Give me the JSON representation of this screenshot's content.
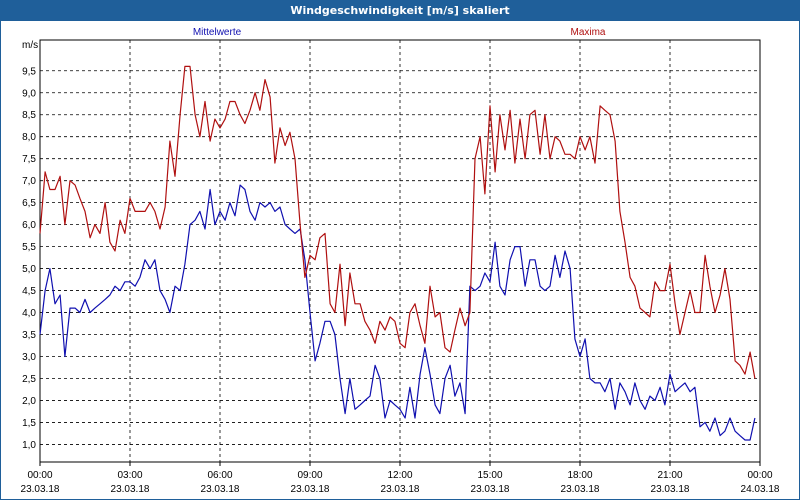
{
  "window": {
    "title": "Windgeschwindigkeit [m/s] skaliert"
  },
  "chart_data": {
    "type": "line",
    "yunit": "m/s",
    "ylim": [
      0.6,
      10.2
    ],
    "yticks": [
      1.0,
      1.5,
      2.0,
      2.5,
      3.0,
      3.5,
      4.0,
      4.5,
      5.0,
      5.5,
      6.0,
      6.5,
      7.0,
      7.5,
      8.0,
      8.5,
      9.0,
      9.5
    ],
    "ytick_labels": [
      "1,0",
      "1,5",
      "2,0",
      "2,5",
      "3,0",
      "3,5",
      "4,0",
      "4,5",
      "5,0",
      "5,5",
      "6,0",
      "6,5",
      "7,0",
      "7,5",
      "8,0",
      "8,5",
      "9,0",
      "9,5"
    ],
    "xlim": [
      0,
      24
    ],
    "xticks": [
      {
        "x": 0,
        "time": "00:00",
        "date": "23.03.18"
      },
      {
        "x": 3,
        "time": "03:00",
        "date": "23.03.18"
      },
      {
        "x": 6,
        "time": "06:00",
        "date": "23.03.18"
      },
      {
        "x": 9,
        "time": "09:00",
        "date": "23.03.18"
      },
      {
        "x": 12,
        "time": "12:00",
        "date": "23.03.18"
      },
      {
        "x": 15,
        "time": "15:00",
        "date": "23.03.18"
      },
      {
        "x": 18,
        "time": "18:00",
        "date": "23.03.18"
      },
      {
        "x": 21,
        "time": "21:00",
        "date": "23.03.18"
      },
      {
        "x": 24,
        "time": "00:00",
        "date": "24.03.18"
      }
    ],
    "grid": true,
    "series": [
      {
        "name": "Mittelwerte",
        "color": "#1010b0",
        "points": [
          [
            0.0,
            3.5
          ],
          [
            0.17,
            4.5
          ],
          [
            0.33,
            5.0
          ],
          [
            0.5,
            4.2
          ],
          [
            0.67,
            4.4
          ],
          [
            0.83,
            3.0
          ],
          [
            1.0,
            4.1
          ],
          [
            1.17,
            4.1
          ],
          [
            1.33,
            4.0
          ],
          [
            1.5,
            4.3
          ],
          [
            1.67,
            4.0
          ],
          [
            1.83,
            4.1
          ],
          [
            2.0,
            4.2
          ],
          [
            2.17,
            4.3
          ],
          [
            2.33,
            4.4
          ],
          [
            2.5,
            4.6
          ],
          [
            2.67,
            4.5
          ],
          [
            2.83,
            4.7
          ],
          [
            3.0,
            4.7
          ],
          [
            3.17,
            4.6
          ],
          [
            3.33,
            4.8
          ],
          [
            3.5,
            5.2
          ],
          [
            3.67,
            5.0
          ],
          [
            3.83,
            5.2
          ],
          [
            4.0,
            4.5
          ],
          [
            4.17,
            4.3
          ],
          [
            4.33,
            4.0
          ],
          [
            4.5,
            4.6
          ],
          [
            4.67,
            4.5
          ],
          [
            4.83,
            5.1
          ],
          [
            5.0,
            6.0
          ],
          [
            5.17,
            6.1
          ],
          [
            5.33,
            6.3
          ],
          [
            5.5,
            5.9
          ],
          [
            5.67,
            6.8
          ],
          [
            5.83,
            6.0
          ],
          [
            6.0,
            6.3
          ],
          [
            6.17,
            6.1
          ],
          [
            6.33,
            6.5
          ],
          [
            6.5,
            6.2
          ],
          [
            6.67,
            6.9
          ],
          [
            6.83,
            6.8
          ],
          [
            7.0,
            6.3
          ],
          [
            7.17,
            6.1
          ],
          [
            7.33,
            6.5
          ],
          [
            7.5,
            6.4
          ],
          [
            7.67,
            6.5
          ],
          [
            7.83,
            6.3
          ],
          [
            8.0,
            6.4
          ],
          [
            8.17,
            6.0
          ],
          [
            8.33,
            5.9
          ],
          [
            8.5,
            5.8
          ],
          [
            8.67,
            5.9
          ],
          [
            8.83,
            5.2
          ],
          [
            9.0,
            4.0
          ],
          [
            9.17,
            2.9
          ],
          [
            9.33,
            3.3
          ],
          [
            9.5,
            3.8
          ],
          [
            9.67,
            3.8
          ],
          [
            9.83,
            3.5
          ],
          [
            10.0,
            2.5
          ],
          [
            10.17,
            1.7
          ],
          [
            10.33,
            2.5
          ],
          [
            10.5,
            1.8
          ],
          [
            10.67,
            1.9
          ],
          [
            10.83,
            2.0
          ],
          [
            11.0,
            2.1
          ],
          [
            11.17,
            2.8
          ],
          [
            11.33,
            2.5
          ],
          [
            11.5,
            1.6
          ],
          [
            11.67,
            2.0
          ],
          [
            11.83,
            1.9
          ],
          [
            12.0,
            1.8
          ],
          [
            12.17,
            1.6
          ],
          [
            12.33,
            2.3
          ],
          [
            12.5,
            1.6
          ],
          [
            12.67,
            2.6
          ],
          [
            12.83,
            3.2
          ],
          [
            13.0,
            2.6
          ],
          [
            13.17,
            1.9
          ],
          [
            13.33,
            1.7
          ],
          [
            13.5,
            2.5
          ],
          [
            13.67,
            2.8
          ],
          [
            13.83,
            2.1
          ],
          [
            14.0,
            2.4
          ],
          [
            14.17,
            1.7
          ],
          [
            14.33,
            4.6
          ],
          [
            14.5,
            4.5
          ],
          [
            14.67,
            4.6
          ],
          [
            14.83,
            4.9
          ],
          [
            15.0,
            4.7
          ],
          [
            15.17,
            5.6
          ],
          [
            15.33,
            4.6
          ],
          [
            15.5,
            4.4
          ],
          [
            15.67,
            5.2
          ],
          [
            15.83,
            5.5
          ],
          [
            16.0,
            5.5
          ],
          [
            16.17,
            4.6
          ],
          [
            16.33,
            5.2
          ],
          [
            16.5,
            5.2
          ],
          [
            16.67,
            4.6
          ],
          [
            16.83,
            4.5
          ],
          [
            17.0,
            4.6
          ],
          [
            17.17,
            5.3
          ],
          [
            17.33,
            4.8
          ],
          [
            17.5,
            5.4
          ],
          [
            17.67,
            5.0
          ],
          [
            17.83,
            3.4
          ],
          [
            18.0,
            3.0
          ],
          [
            18.17,
            3.4
          ],
          [
            18.33,
            2.5
          ],
          [
            18.5,
            2.4
          ],
          [
            18.67,
            2.4
          ],
          [
            18.83,
            2.2
          ],
          [
            19.0,
            2.5
          ],
          [
            19.17,
            1.8
          ],
          [
            19.33,
            2.4
          ],
          [
            19.5,
            2.2
          ],
          [
            19.67,
            1.9
          ],
          [
            19.83,
            2.4
          ],
          [
            20.0,
            2.0
          ],
          [
            20.17,
            1.8
          ],
          [
            20.33,
            2.1
          ],
          [
            20.5,
            2.0
          ],
          [
            20.67,
            2.3
          ],
          [
            20.83,
            1.9
          ],
          [
            21.0,
            2.6
          ],
          [
            21.17,
            2.2
          ],
          [
            21.33,
            2.3
          ],
          [
            21.5,
            2.4
          ],
          [
            21.67,
            2.2
          ],
          [
            21.83,
            2.3
          ],
          [
            22.0,
            1.4
          ],
          [
            22.17,
            1.5
          ],
          [
            22.33,
            1.3
          ],
          [
            22.5,
            1.6
          ],
          [
            22.67,
            1.2
          ],
          [
            22.83,
            1.3
          ],
          [
            23.0,
            1.6
          ],
          [
            23.17,
            1.3
          ],
          [
            23.33,
            1.2
          ],
          [
            23.5,
            1.1
          ],
          [
            23.67,
            1.1
          ],
          [
            23.83,
            1.6
          ]
        ]
      },
      {
        "name": "Maxima",
        "color": "#b01010",
        "points": [
          [
            0.0,
            5.8
          ],
          [
            0.17,
            7.2
          ],
          [
            0.33,
            6.8
          ],
          [
            0.5,
            6.8
          ],
          [
            0.67,
            7.1
          ],
          [
            0.83,
            6.0
          ],
          [
            1.0,
            7.0
          ],
          [
            1.17,
            6.9
          ],
          [
            1.33,
            6.6
          ],
          [
            1.5,
            6.3
          ],
          [
            1.67,
            5.7
          ],
          [
            1.83,
            6.0
          ],
          [
            2.0,
            5.8
          ],
          [
            2.17,
            6.5
          ],
          [
            2.33,
            5.6
          ],
          [
            2.5,
            5.4
          ],
          [
            2.67,
            6.1
          ],
          [
            2.83,
            5.8
          ],
          [
            3.0,
            6.6
          ],
          [
            3.17,
            6.3
          ],
          [
            3.33,
            6.3
          ],
          [
            3.5,
            6.3
          ],
          [
            3.67,
            6.5
          ],
          [
            3.83,
            6.3
          ],
          [
            4.0,
            5.9
          ],
          [
            4.17,
            6.4
          ],
          [
            4.33,
            7.9
          ],
          [
            4.5,
            7.1
          ],
          [
            4.67,
            8.5
          ],
          [
            4.83,
            9.6
          ],
          [
            5.0,
            9.6
          ],
          [
            5.17,
            8.5
          ],
          [
            5.33,
            8.0
          ],
          [
            5.5,
            8.8
          ],
          [
            5.67,
            7.9
          ],
          [
            5.83,
            8.4
          ],
          [
            6.0,
            8.2
          ],
          [
            6.17,
            8.4
          ],
          [
            6.33,
            8.8
          ],
          [
            6.5,
            8.8
          ],
          [
            6.67,
            8.5
          ],
          [
            6.83,
            8.3
          ],
          [
            7.0,
            8.6
          ],
          [
            7.17,
            9.0
          ],
          [
            7.33,
            8.6
          ],
          [
            7.5,
            9.3
          ],
          [
            7.67,
            8.9
          ],
          [
            7.83,
            7.4
          ],
          [
            8.0,
            8.2
          ],
          [
            8.17,
            7.8
          ],
          [
            8.33,
            8.1
          ],
          [
            8.5,
            7.5
          ],
          [
            8.67,
            6.0
          ],
          [
            8.83,
            4.8
          ],
          [
            9.0,
            5.3
          ],
          [
            9.17,
            5.2
          ],
          [
            9.33,
            5.7
          ],
          [
            9.5,
            5.8
          ],
          [
            9.67,
            4.2
          ],
          [
            9.83,
            4.0
          ],
          [
            10.0,
            5.1
          ],
          [
            10.17,
            3.7
          ],
          [
            10.33,
            4.9
          ],
          [
            10.5,
            4.2
          ],
          [
            10.67,
            4.2
          ],
          [
            10.83,
            3.8
          ],
          [
            11.0,
            3.6
          ],
          [
            11.17,
            3.3
          ],
          [
            11.33,
            3.8
          ],
          [
            11.5,
            3.6
          ],
          [
            11.67,
            3.9
          ],
          [
            11.83,
            3.8
          ],
          [
            12.0,
            3.3
          ],
          [
            12.17,
            3.2
          ],
          [
            12.33,
            4.0
          ],
          [
            12.5,
            4.2
          ],
          [
            12.67,
            3.7
          ],
          [
            12.83,
            3.3
          ],
          [
            13.0,
            4.6
          ],
          [
            13.17,
            3.9
          ],
          [
            13.33,
            4.0
          ],
          [
            13.5,
            3.2
          ],
          [
            13.67,
            3.1
          ],
          [
            13.83,
            3.6
          ],
          [
            14.0,
            4.1
          ],
          [
            14.17,
            3.7
          ],
          [
            14.33,
            4.0
          ],
          [
            14.5,
            7.5
          ],
          [
            14.67,
            8.0
          ],
          [
            14.83,
            6.7
          ],
          [
            15.0,
            8.7
          ],
          [
            15.17,
            7.2
          ],
          [
            15.33,
            8.5
          ],
          [
            15.5,
            7.7
          ],
          [
            15.67,
            8.6
          ],
          [
            15.83,
            7.4
          ],
          [
            16.0,
            8.4
          ],
          [
            16.17,
            7.5
          ],
          [
            16.33,
            8.5
          ],
          [
            16.5,
            8.6
          ],
          [
            16.67,
            7.6
          ],
          [
            16.83,
            8.5
          ],
          [
            17.0,
            7.5
          ],
          [
            17.17,
            8.0
          ],
          [
            17.33,
            7.9
          ],
          [
            17.5,
            7.6
          ],
          [
            17.67,
            7.6
          ],
          [
            17.83,
            7.5
          ],
          [
            18.0,
            8.0
          ],
          [
            18.17,
            7.7
          ],
          [
            18.33,
            8.0
          ],
          [
            18.5,
            7.4
          ],
          [
            18.67,
            8.7
          ],
          [
            18.83,
            8.6
          ],
          [
            19.0,
            8.5
          ],
          [
            19.17,
            7.9
          ],
          [
            19.33,
            6.3
          ],
          [
            19.5,
            5.6
          ],
          [
            19.67,
            4.8
          ],
          [
            19.83,
            4.6
          ],
          [
            20.0,
            4.1
          ],
          [
            20.17,
            4.0
          ],
          [
            20.33,
            3.9
          ],
          [
            20.5,
            4.7
          ],
          [
            20.67,
            4.5
          ],
          [
            20.83,
            4.5
          ],
          [
            21.0,
            5.1
          ],
          [
            21.17,
            4.2
          ],
          [
            21.33,
            3.5
          ],
          [
            21.5,
            4.0
          ],
          [
            21.67,
            4.5
          ],
          [
            21.83,
            4.0
          ],
          [
            22.0,
            4.0
          ],
          [
            22.17,
            5.3
          ],
          [
            22.33,
            4.6
          ],
          [
            22.5,
            4.0
          ],
          [
            22.67,
            4.4
          ],
          [
            22.83,
            5.0
          ],
          [
            23.0,
            4.3
          ],
          [
            23.17,
            2.9
          ],
          [
            23.33,
            2.8
          ],
          [
            23.5,
            2.6
          ],
          [
            23.67,
            3.1
          ],
          [
            23.83,
            2.5
          ]
        ]
      }
    ]
  }
}
